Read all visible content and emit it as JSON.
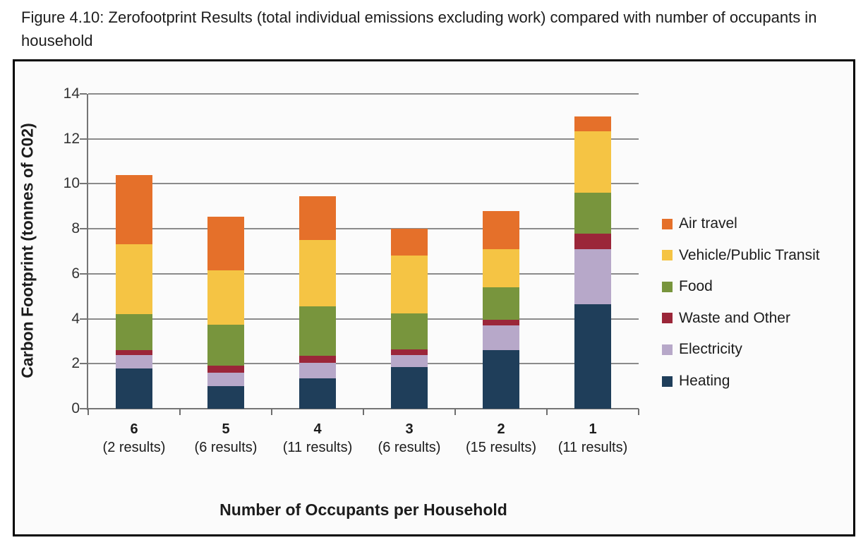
{
  "page_title": "Figure 4.10: Zerofootprint Results (total individual emissions excluding work) compared with number of occupants in household",
  "chart_data": {
    "type": "bar",
    "stacked": true,
    "xlabel": "Number of Occupants per Household",
    "ylabel": "Carbon Footprint (tonnes of C02)",
    "ylim": [
      0,
      14
    ],
    "yticks": [
      0,
      2,
      4,
      6,
      8,
      10,
      12,
      14
    ],
    "grid": true,
    "legend_position": "right",
    "categories": [
      "6",
      "5",
      "4",
      "3",
      "2",
      "1"
    ],
    "category_sublabels": [
      "(2 results)",
      "(6 results)",
      "(11 results)",
      "(6 results)",
      "(15 results)",
      "(11 results)"
    ],
    "series_bottom_to_top": [
      {
        "name": "Heating",
        "color": "#1F3E5A",
        "values": [
          1.8,
          1.0,
          1.35,
          1.85,
          2.6,
          4.65
        ]
      },
      {
        "name": "Electricity",
        "color": "#B7A8C9",
        "values": [
          0.6,
          0.6,
          0.7,
          0.55,
          1.1,
          2.45
        ]
      },
      {
        "name": "Waste and Other",
        "color": "#9B2639",
        "values": [
          0.2,
          0.3,
          0.3,
          0.25,
          0.25,
          0.7
        ]
      },
      {
        "name": "Food",
        "color": "#78953D",
        "values": [
          1.6,
          1.85,
          2.2,
          1.6,
          1.45,
          1.8
        ]
      },
      {
        "name": "Vehicle/Public Transit",
        "color": "#F5C444",
        "values": [
          3.1,
          2.4,
          2.95,
          2.55,
          1.7,
          2.75
        ]
      },
      {
        "name": "Air travel",
        "color": "#E5702A",
        "values": [
          3.1,
          2.4,
          1.95,
          1.2,
          1.7,
          0.65
        ]
      }
    ],
    "legend_order_top_to_bottom": [
      "Air travel",
      "Vehicle/Public Transit",
      "Food",
      "Waste and Other",
      "Electricity",
      "Heating"
    ],
    "bar_totals": [
      10.4,
      8.55,
      9.45,
      8.0,
      8.8,
      13.0
    ]
  },
  "style_colors": {
    "gridline": "#8b8b8b",
    "axis": "#757575",
    "figure_border": "#000000",
    "figure_background": "#fbfbfb"
  }
}
